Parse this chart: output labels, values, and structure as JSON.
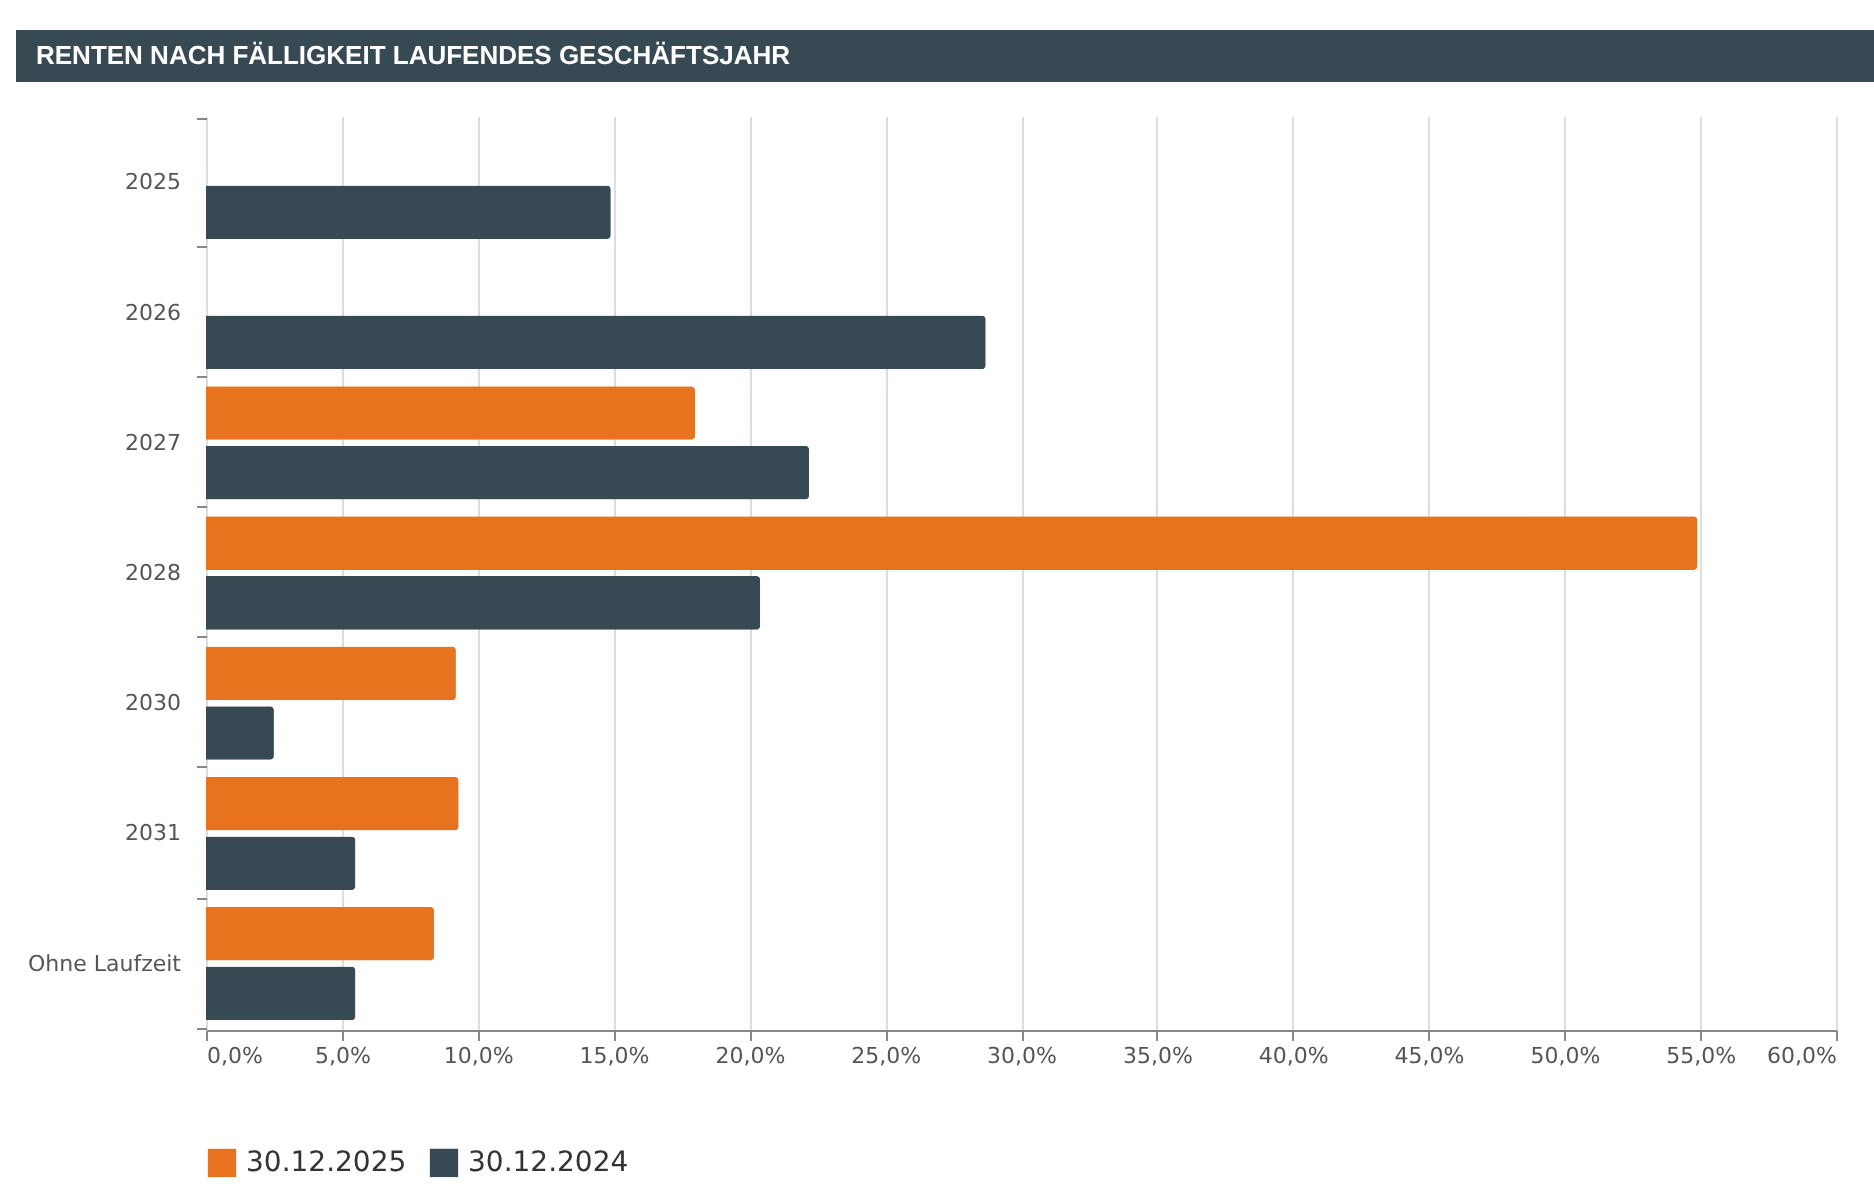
{
  "chart_data": {
    "type": "bar",
    "orientation": "horizontal",
    "title": "RENTEN NACH FÄLLIGKEIT LAUFENDES GESCHÄFTSJAHR",
    "categories": [
      "2025",
      "2026",
      "2027",
      "2028",
      "2030",
      "2031",
      "Ohne Laufzeit"
    ],
    "series": [
      {
        "name": "30.12.2025",
        "color": "#e8731e",
        "values": [
          null,
          null,
          18.0,
          54.9,
          9.2,
          9.3,
          8.4
        ]
      },
      {
        "name": "30.12.2024",
        "color": "#374a54",
        "values": [
          14.9,
          28.7,
          22.2,
          20.4,
          2.5,
          5.5,
          5.5
        ]
      }
    ],
    "xlim": [
      0,
      60
    ],
    "xticks": [
      {
        "value": 0,
        "label": "0,0%"
      },
      {
        "value": 5,
        "label": "5,0%"
      },
      {
        "value": 10,
        "label": "10,0%"
      },
      {
        "value": 15,
        "label": "15,0%"
      },
      {
        "value": 20,
        "label": "20,0%"
      },
      {
        "value": 25,
        "label": "25,0%"
      },
      {
        "value": 30,
        "label": "30,0%"
      },
      {
        "value": 35,
        "label": "35,0%"
      },
      {
        "value": 40,
        "label": "40,0%"
      },
      {
        "value": 45,
        "label": "45,0%"
      },
      {
        "value": 50,
        "label": "50,0%"
      },
      {
        "value": 55,
        "label": "55,0%"
      },
      {
        "value": 60,
        "label": "60,0%"
      }
    ],
    "grid": "x",
    "legend": "bottom"
  }
}
